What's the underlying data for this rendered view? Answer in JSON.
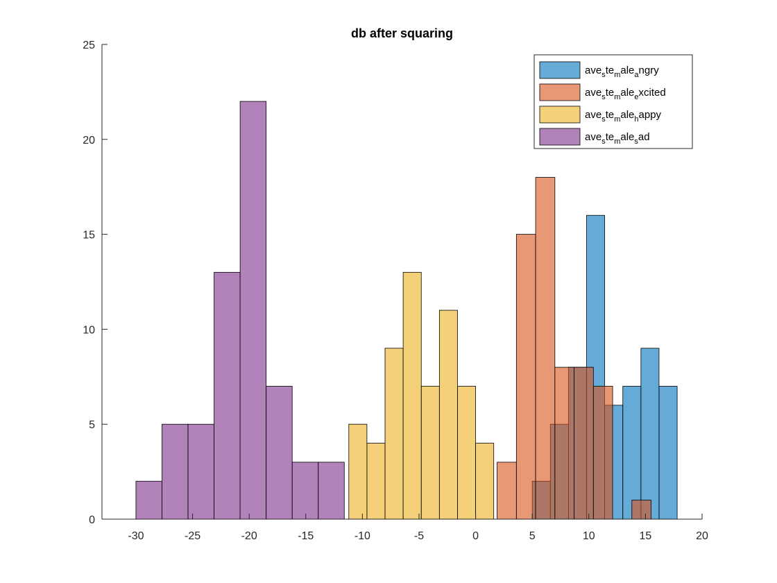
{
  "chart_data": {
    "type": "bar",
    "chart_subtype": "overlaid histogram",
    "title": "db after squaring",
    "xlabel": "",
    "ylabel": "",
    "xlim": [
      -33,
      20
    ],
    "ylim": [
      0,
      25
    ],
    "xticks": [
      -30,
      -25,
      -20,
      -15,
      -10,
      -5,
      0,
      5,
      10,
      15,
      20
    ],
    "yticks": [
      0,
      5,
      10,
      15,
      20,
      25
    ],
    "grid": false,
    "legend_position": "top-right",
    "series": [
      {
        "name": "ave_ste_male_angry",
        "legend_parts": [
          "ave",
          "s",
          "te",
          "m",
          "ale",
          "a",
          "ngry"
        ],
        "color": "#0072BD",
        "bin_edges": [
          5.0,
          6.6,
          8.2,
          9.8,
          11.4,
          13.0,
          14.6,
          16.2,
          17.8
        ],
        "counts": [
          2,
          5,
          8,
          16,
          6,
          7,
          9,
          7
        ]
      },
      {
        "name": "ave_ste_male_excited",
        "legend_parts": [
          "ave",
          "s",
          "te",
          "m",
          "ale",
          "e",
          "xcited"
        ],
        "color": "#D95319",
        "bin_edges": [
          1.9,
          3.6,
          5.3,
          7.0,
          8.7,
          10.4,
          12.1,
          13.8,
          15.5
        ],
        "counts": [
          3,
          15,
          18,
          8,
          8,
          7,
          0,
          1
        ]
      },
      {
        "name": "ave_ste_male_happy",
        "legend_parts": [
          "ave",
          "s",
          "te",
          "m",
          "ale",
          "h",
          "appy"
        ],
        "color": "#EDB120",
        "bin_edges": [
          -11.2,
          -9.6,
          -8.0,
          -6.4,
          -4.8,
          -3.2,
          -1.6,
          0.0,
          1.6
        ],
        "counts": [
          5,
          4,
          9,
          13,
          7,
          11,
          7,
          4
        ]
      },
      {
        "name": "ave_ste_male_sad",
        "legend_parts": [
          "ave",
          "s",
          "te",
          "m",
          "ale",
          "s",
          "ad"
        ],
        "color": "#7E2F8E",
        "bin_edges": [
          -30.0,
          -27.7,
          -25.4,
          -23.1,
          -20.8,
          -18.5,
          -16.2,
          -13.9,
          -11.6
        ],
        "counts": [
          2,
          5,
          5,
          13,
          22,
          7,
          3,
          3
        ]
      }
    ],
    "face_alpha": 0.6
  }
}
